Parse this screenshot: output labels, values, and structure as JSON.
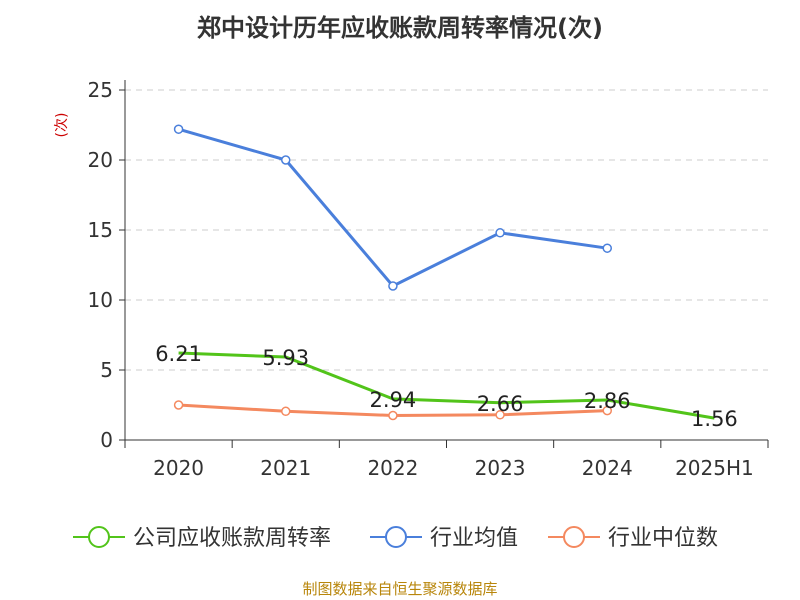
{
  "chart_data": {
    "type": "line",
    "title": "郑中设计历年应收账款周转率情况(次)",
    "ylabel": "(次)",
    "categories": [
      "2020",
      "2021",
      "2022",
      "2023",
      "2024",
      "2025H1"
    ],
    "ylim": [
      0,
      25
    ],
    "yticks": [
      0,
      5,
      10,
      15,
      20,
      25
    ],
    "grid": true,
    "legend_position": "bottom",
    "series": [
      {
        "name": "公司应收账款周转率",
        "color": "#52c41a",
        "values": [
          6.21,
          5.93,
          2.94,
          2.66,
          2.86,
          1.56
        ],
        "labels": [
          "6.21",
          "5.93",
          "2.94",
          "2.66",
          "2.86",
          "1.56"
        ]
      },
      {
        "name": "行业均值",
        "color": "#4a7fdb",
        "values": [
          22.2,
          20.0,
          11.0,
          14.8,
          13.7,
          null
        ]
      },
      {
        "name": "行业中位数",
        "color": "#f4895f",
        "values": [
          2.5,
          2.05,
          1.75,
          1.8,
          2.1,
          null
        ]
      }
    ]
  },
  "source": "制图数据来自恒生聚源数据库"
}
